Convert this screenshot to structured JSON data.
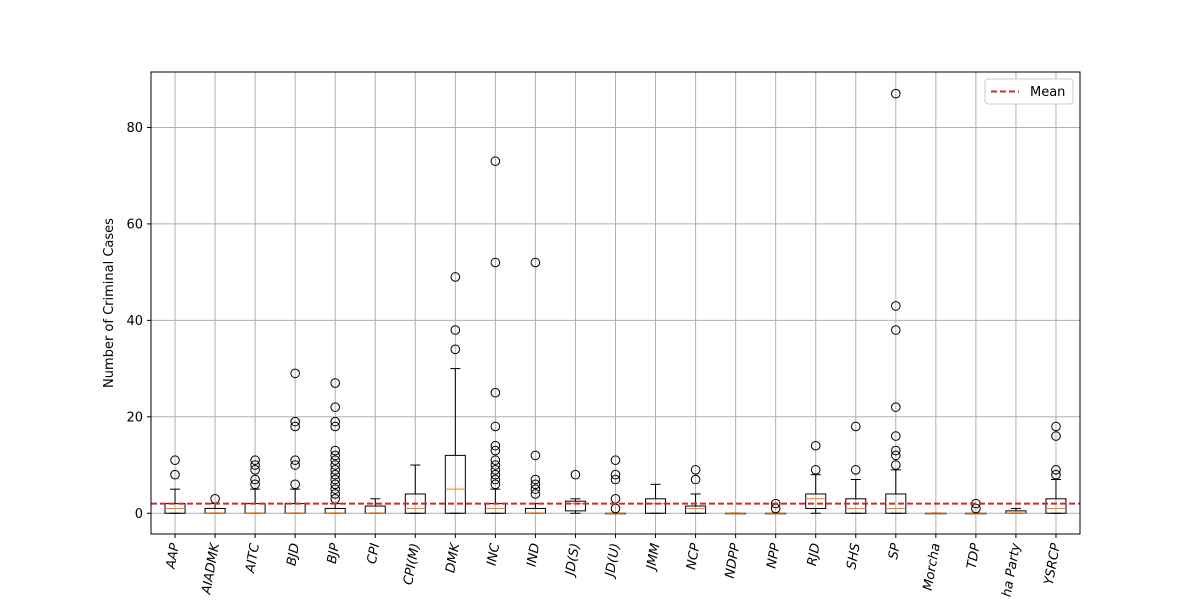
{
  "chart_data": {
    "type": "boxplot",
    "title": "",
    "xlabel": "",
    "ylabel": "Number of Criminal Cases",
    "ylim": [
      -4.3,
      91.5
    ],
    "yticks": [
      0,
      20,
      40,
      60,
      80
    ],
    "grid": true,
    "legend": {
      "placement": "top-right",
      "entries": [
        {
          "label": "Mean",
          "style": "dashed",
          "color": "#d62728"
        }
      ]
    },
    "mean_line": 2,
    "colors": {
      "box": "#000000",
      "median": "#ff7f0e",
      "mean": "#d62728",
      "grid": "#b0b0b0"
    },
    "categories": [
      "AAP",
      "AIADMK",
      "AITC",
      "BJD",
      "BJP",
      "CPI",
      "CPI(M)",
      "DMK",
      "INC",
      "IND",
      "JD(S)",
      "JD(U)",
      "JMM",
      "NCP",
      "NDPP",
      "NPP",
      "RJD",
      "SHS",
      "SP",
      "Morcha",
      "TDP",
      "ha Party",
      "YSRCP"
    ],
    "boxes": [
      {
        "q1": 0,
        "median": 1,
        "q3": 2,
        "whisker_low": 0,
        "whisker_high": 5,
        "outliers": [
          8,
          11
        ]
      },
      {
        "q1": 0,
        "median": 0,
        "q3": 1,
        "whisker_low": 0,
        "whisker_high": 2,
        "outliers": [
          3
        ]
      },
      {
        "q1": 0,
        "median": 0,
        "q3": 2,
        "whisker_low": 0,
        "whisker_high": 5,
        "outliers": [
          6,
          7,
          9,
          10,
          11
        ]
      },
      {
        "q1": 0,
        "median": 0,
        "q3": 2,
        "whisker_low": 0,
        "whisker_high": 5,
        "outliers": [
          6,
          10,
          11,
          18,
          19,
          29
        ]
      },
      {
        "q1": 0,
        "median": 0,
        "q3": 1,
        "whisker_low": 0,
        "whisker_high": 2,
        "outliers": [
          3,
          4,
          5,
          6,
          7,
          8,
          9,
          10,
          11,
          12,
          13,
          18,
          19,
          22,
          27
        ]
      },
      {
        "q1": 0,
        "median": 0,
        "q3": 1.5,
        "whisker_low": 0,
        "whisker_high": 3,
        "outliers": []
      },
      {
        "q1": 0,
        "median": 1,
        "q3": 4,
        "whisker_low": 0,
        "whisker_high": 10,
        "outliers": []
      },
      {
        "q1": 0,
        "median": 5,
        "q3": 12,
        "whisker_low": 0,
        "whisker_high": 30,
        "outliers": [
          34,
          38,
          49
        ]
      },
      {
        "q1": 0,
        "median": 1,
        "q3": 2,
        "whisker_low": 0,
        "whisker_high": 5,
        "outliers": [
          6,
          7,
          8,
          9,
          10,
          11,
          13,
          14,
          18,
          25,
          52,
          73
        ]
      },
      {
        "q1": 0,
        "median": 0,
        "q3": 1,
        "whisker_low": 0,
        "whisker_high": 2,
        "outliers": [
          4,
          5,
          6,
          7,
          12,
          52
        ]
      },
      {
        "q1": 0.5,
        "median": 2,
        "q3": 2.5,
        "whisker_low": 0,
        "whisker_high": 3,
        "outliers": [
          8
        ]
      },
      {
        "q1": 0,
        "median": 0,
        "q3": 0,
        "whisker_low": 0,
        "whisker_high": 0,
        "outliers": [
          1,
          3,
          7,
          8,
          11
        ]
      },
      {
        "q1": 0,
        "median": 2,
        "q3": 3,
        "whisker_low": 0,
        "whisker_high": 6,
        "outliers": []
      },
      {
        "q1": 0,
        "median": 1,
        "q3": 1.5,
        "whisker_low": 0,
        "whisker_high": 4,
        "outliers": [
          7,
          9
        ]
      },
      {
        "q1": 0,
        "median": 0,
        "q3": 0,
        "whisker_low": 0,
        "whisker_high": 0,
        "outliers": []
      },
      {
        "q1": 0,
        "median": 0,
        "q3": 0,
        "whisker_low": 0,
        "whisker_high": 0,
        "outliers": [
          1,
          2
        ]
      },
      {
        "q1": 1,
        "median": 3,
        "q3": 4,
        "whisker_low": 0,
        "whisker_high": 8,
        "outliers": [
          9,
          14
        ]
      },
      {
        "q1": 0,
        "median": 1,
        "q3": 3,
        "whisker_low": 0,
        "whisker_high": 7,
        "outliers": [
          9,
          18
        ]
      },
      {
        "q1": 0,
        "median": 1,
        "q3": 4,
        "whisker_low": 0,
        "whisker_high": 9,
        "outliers": [
          10,
          12,
          13,
          16,
          22,
          38,
          43,
          87
        ]
      },
      {
        "q1": 0,
        "median": 0,
        "q3": 0,
        "whisker_low": 0,
        "whisker_high": 0,
        "outliers": []
      },
      {
        "q1": 0,
        "median": 0,
        "q3": 0,
        "whisker_low": 0,
        "whisker_high": 0,
        "outliers": [
          1,
          2
        ]
      },
      {
        "q1": 0,
        "median": 0,
        "q3": 0.5,
        "whisker_low": 0,
        "whisker_high": 1,
        "outliers": []
      },
      {
        "q1": 0,
        "median": 1,
        "q3": 3,
        "whisker_low": 0,
        "whisker_high": 7,
        "outliers": [
          8,
          9,
          16,
          18
        ]
      }
    ]
  }
}
